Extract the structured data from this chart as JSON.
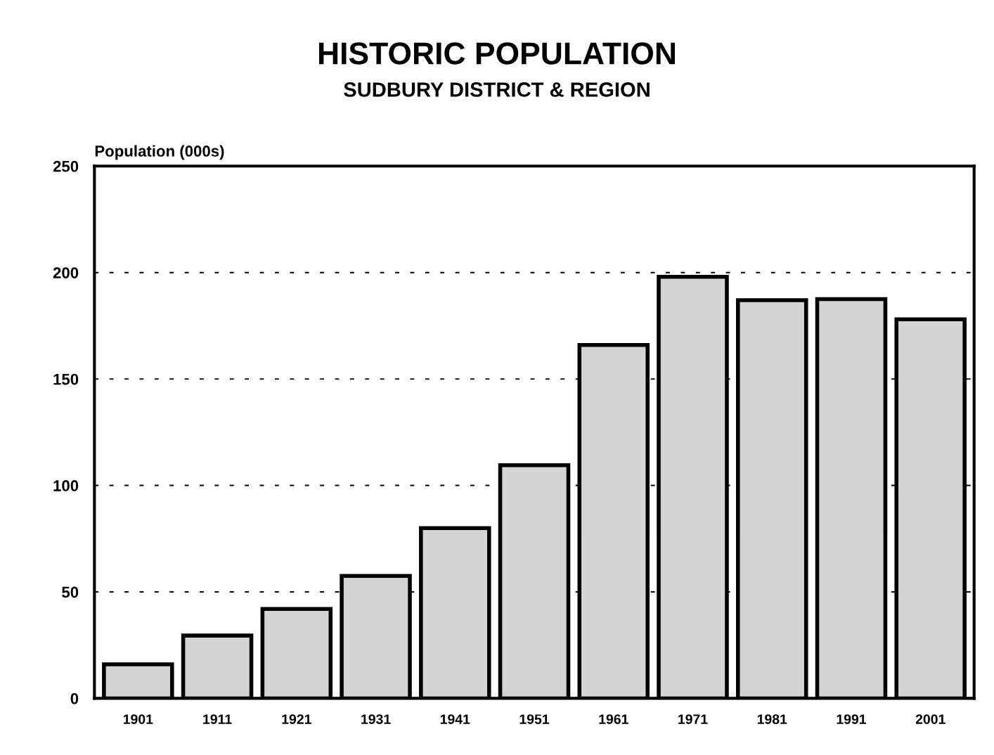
{
  "chart_data": {
    "type": "bar",
    "title": "HISTORIC POPULATION",
    "subtitle": "SUDBURY DISTRICT & REGION",
    "ylabel": "Population (000s)",
    "categories": [
      "1901",
      "1911",
      "1921",
      "1931",
      "1941",
      "1951",
      "1961",
      "1971",
      "1981",
      "1991",
      "2001"
    ],
    "values": [
      16,
      29.5,
      42,
      57.5,
      80,
      109.5,
      166,
      198,
      187,
      187.5,
      178
    ],
    "color": "#d4d4d4",
    "ylim": [
      0,
      250
    ],
    "yticks": [
      0,
      50,
      100,
      150,
      200,
      250
    ],
    "grid": "y",
    "line_style": "dashed"
  }
}
